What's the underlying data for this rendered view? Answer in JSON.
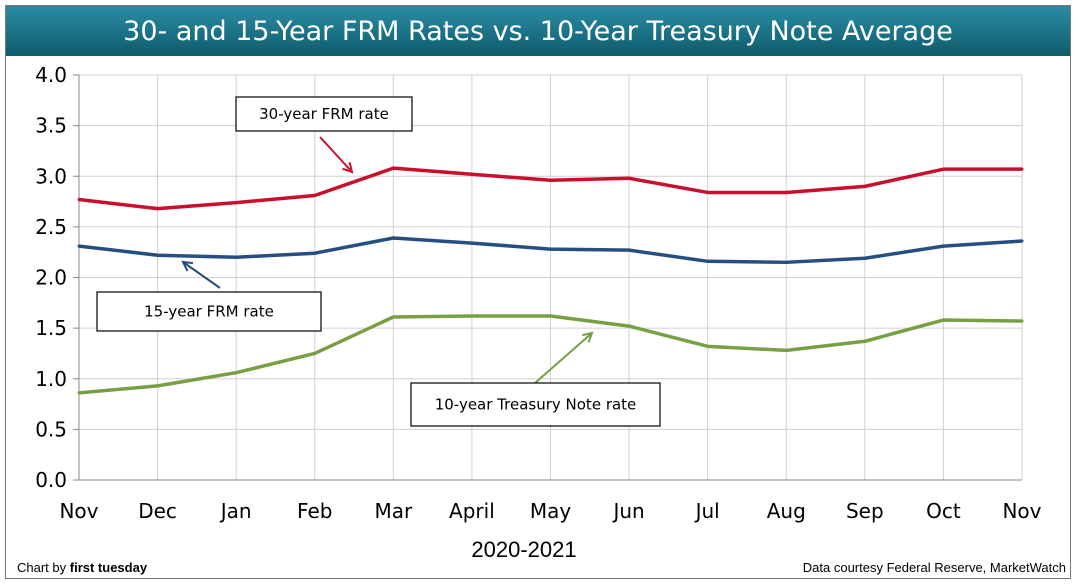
{
  "chart_data": {
    "type": "line",
    "title": "30- and 15-Year FRM Rates vs. 10-Year Treasury Note Average",
    "xlabel": "2020-2021",
    "ylabel": "",
    "categories": [
      "Nov",
      "Dec",
      "Jan",
      "Feb",
      "Mar",
      "April",
      "May",
      "Jun",
      "Jul",
      "Aug",
      "Sep",
      "Oct",
      "Nov"
    ],
    "ylim": [
      0,
      4.0
    ],
    "yticks": [
      "0.0",
      "0.5",
      "1.0",
      "1.5",
      "2.0",
      "2.5",
      "3.0",
      "3.5",
      "4.0"
    ],
    "grid": true,
    "series": [
      {
        "name": "30-year FRM rate",
        "color": "#c8102e",
        "values": [
          2.77,
          2.68,
          2.74,
          2.81,
          3.08,
          3.02,
          2.96,
          2.98,
          2.84,
          2.84,
          2.9,
          3.07,
          3.07
        ]
      },
      {
        "name": "15-year FRM rate",
        "color": "#264f7f",
        "values": [
          2.31,
          2.22,
          2.2,
          2.24,
          2.39,
          2.34,
          2.28,
          2.27,
          2.16,
          2.15,
          2.19,
          2.31,
          2.36
        ]
      },
      {
        "name": "10-year Treasury Note rate",
        "color": "#77a043",
        "values": [
          0.86,
          0.93,
          1.06,
          1.25,
          1.61,
          1.62,
          1.62,
          1.52,
          1.32,
          1.28,
          1.37,
          1.58,
          1.57
        ]
      }
    ]
  },
  "footer": {
    "credit_prefix": "Chart by ",
    "credit_brand": "first tuesday",
    "source": "Data courtesy Federal Reserve, MarketWatch"
  }
}
